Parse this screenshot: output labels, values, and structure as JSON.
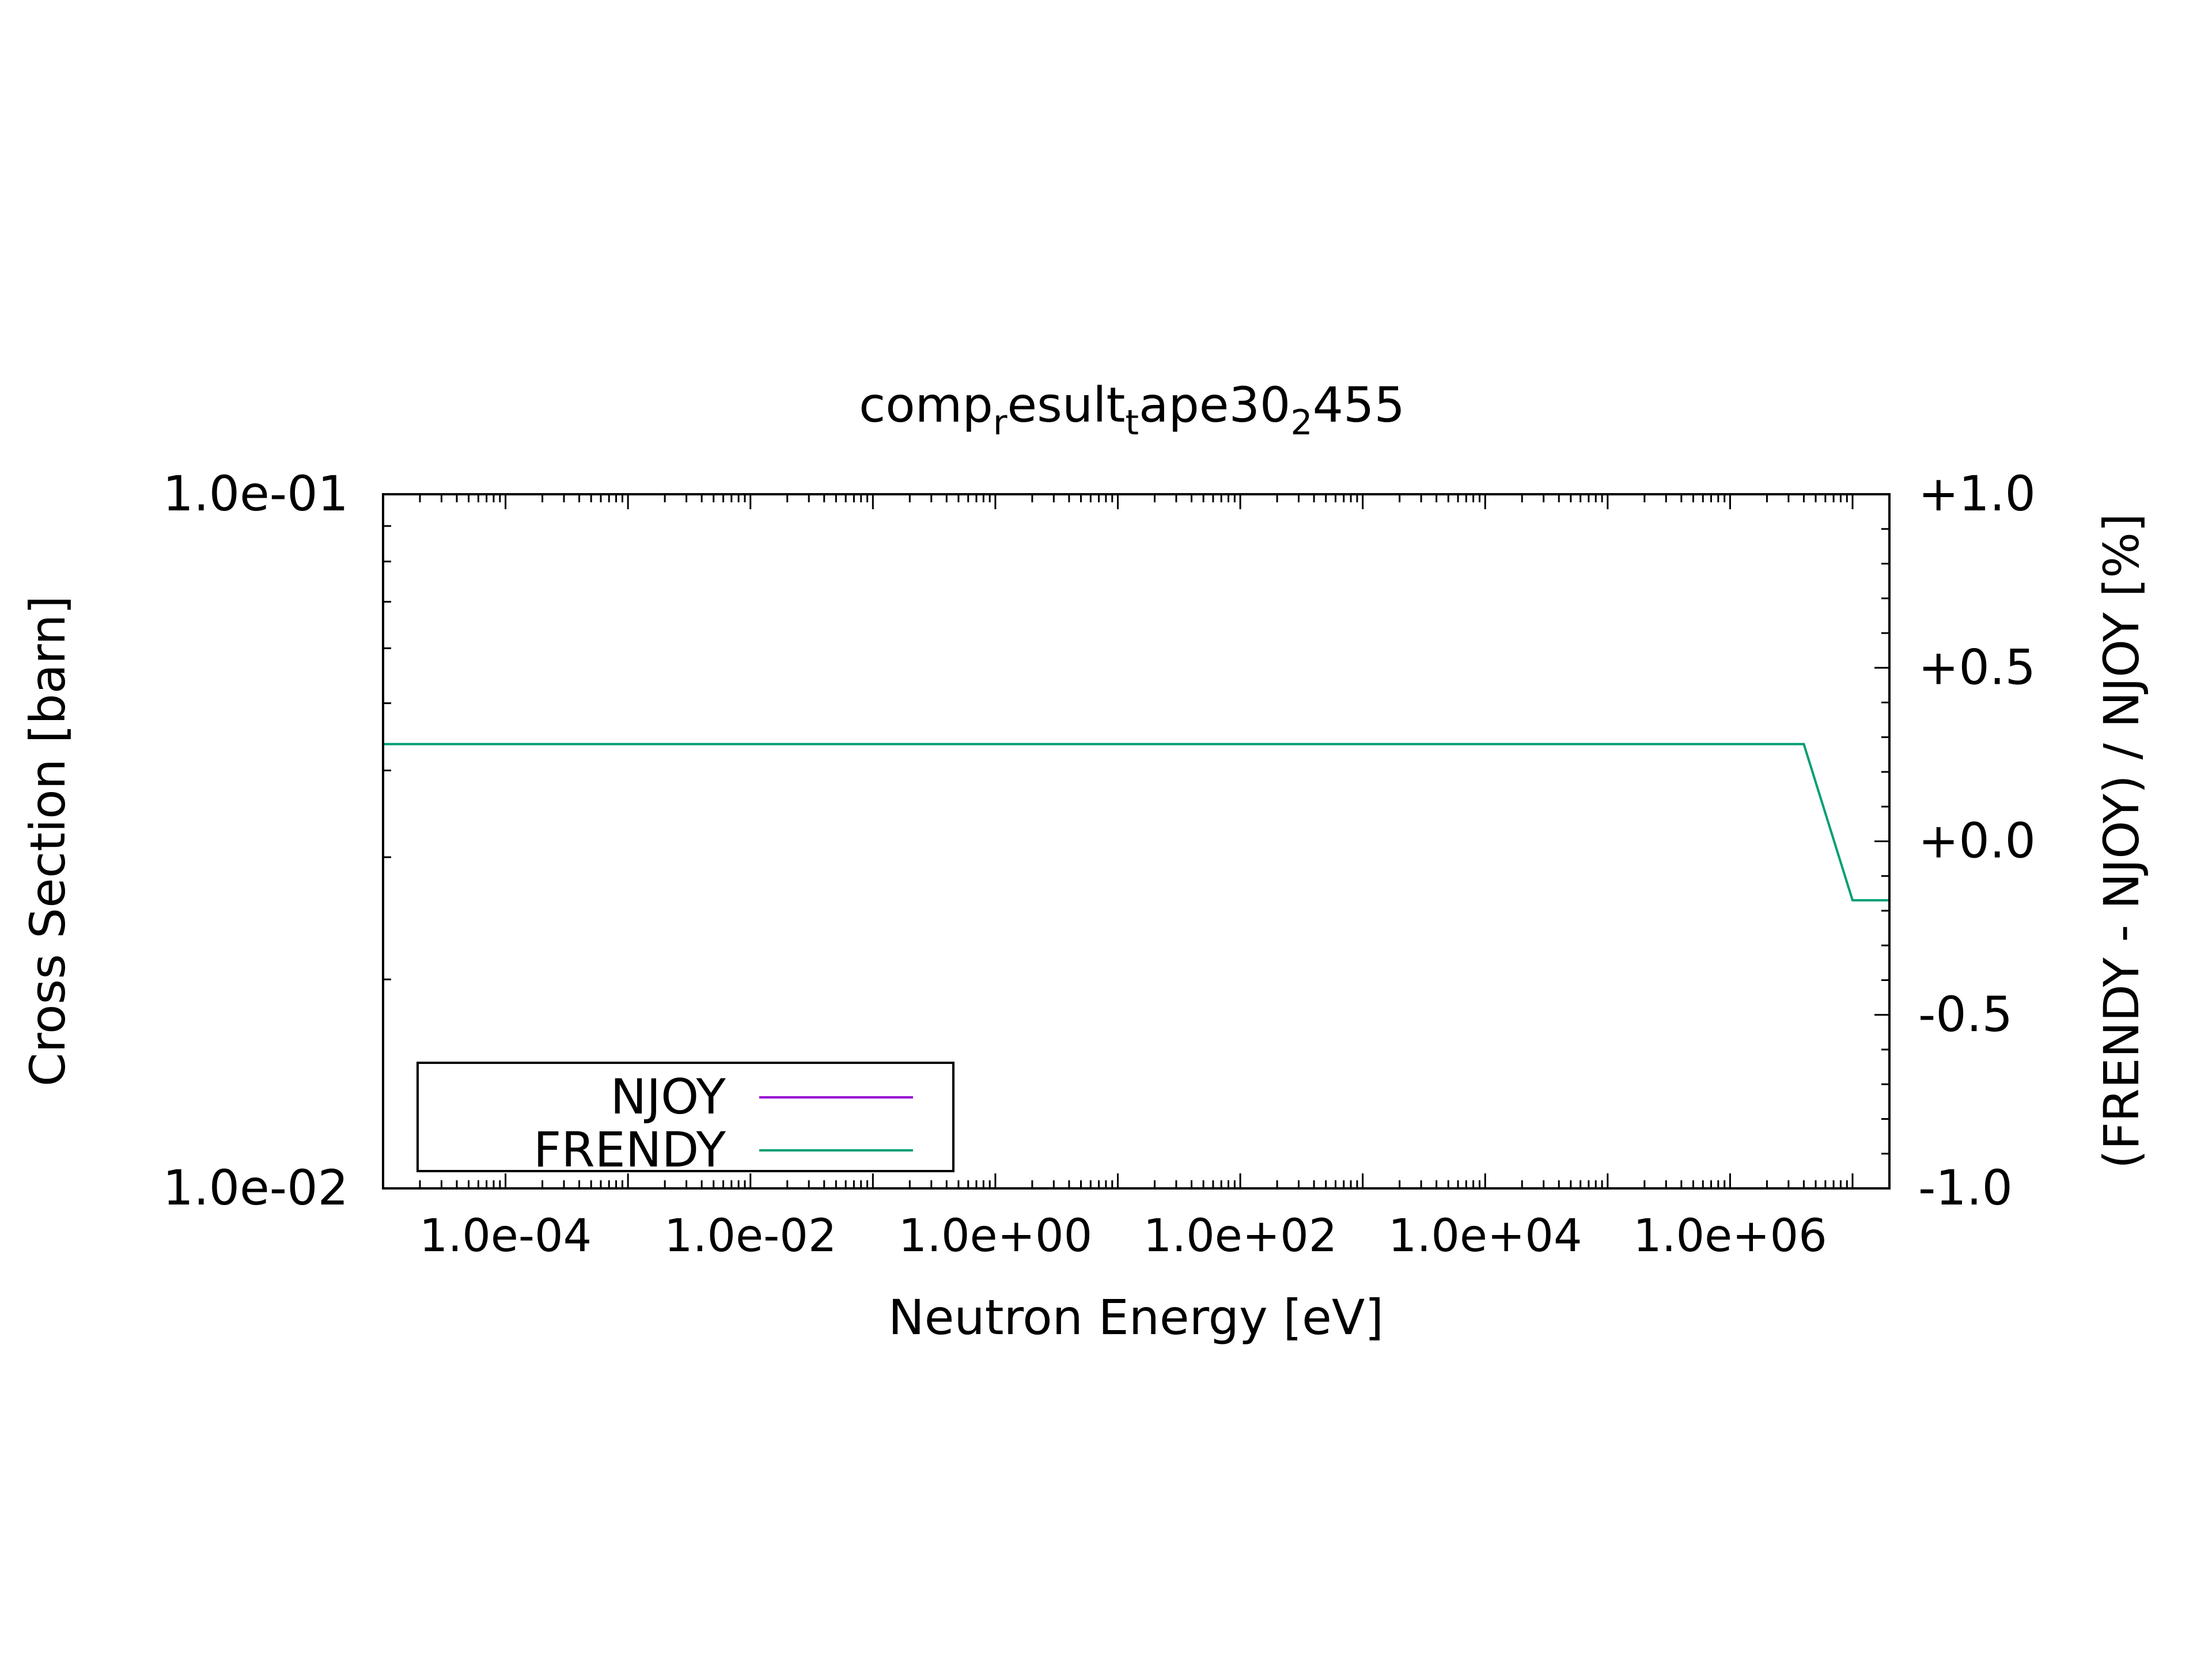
{
  "chart_data": {
    "type": "line",
    "title": {
      "parts": [
        {
          "text": "comp",
          "sub": false
        },
        {
          "text": "r",
          "sub": true
        },
        {
          "text": "esult",
          "sub": false
        },
        {
          "text": "t",
          "sub": true
        },
        {
          "text": "ape30",
          "sub": false
        },
        {
          "text": "2",
          "sub": true
        },
        {
          "text": "455",
          "sub": false
        }
      ]
    },
    "xlabel": "Neutron Energy [eV]",
    "ylabel": "Cross Section [barn]",
    "y2label": "(FRENDY - NJOY) / NJOY [%]",
    "xscale": "log",
    "yscale": "log",
    "xlim": [
      1e-05,
      20000000
    ],
    "ylim": [
      0.01,
      0.1
    ],
    "y2lim": [
      -1.0,
      1.0
    ],
    "xticks": [
      {
        "value": 0.0001,
        "label": "1.0e-04"
      },
      {
        "value": 0.01,
        "label": "1.0e-02"
      },
      {
        "value": 1,
        "label": "1.0e+00"
      },
      {
        "value": 100,
        "label": "1.0e+02"
      },
      {
        "value": 10000,
        "label": "1.0e+04"
      },
      {
        "value": 1000000,
        "label": "1.0e+06"
      }
    ],
    "yticks": [
      {
        "value": 0.1,
        "label": "1.0e-01"
      },
      {
        "value": 0.01,
        "label": "1.0e-02"
      }
    ],
    "y2ticks": [
      {
        "value": 1.0,
        "label": "+1.0"
      },
      {
        "value": 0.5,
        "label": "+0.5"
      },
      {
        "value": 0.0,
        "label": "+0.0"
      },
      {
        "value": -0.5,
        "label": "-0.5"
      },
      {
        "value": -1.0,
        "label": "-1.0"
      }
    ],
    "legend_position": "bottom-left",
    "series": [
      {
        "name": "NJOY",
        "color": "#9400d3",
        "axis": "y",
        "x": [],
        "y": []
      },
      {
        "name": "FRENDY",
        "color": "#009e73",
        "axis": "y2",
        "x": [
          1e-05,
          4000000,
          10000000,
          20000000
        ],
        "y": [
          0.28,
          0.28,
          -0.17,
          -0.17
        ]
      }
    ]
  }
}
